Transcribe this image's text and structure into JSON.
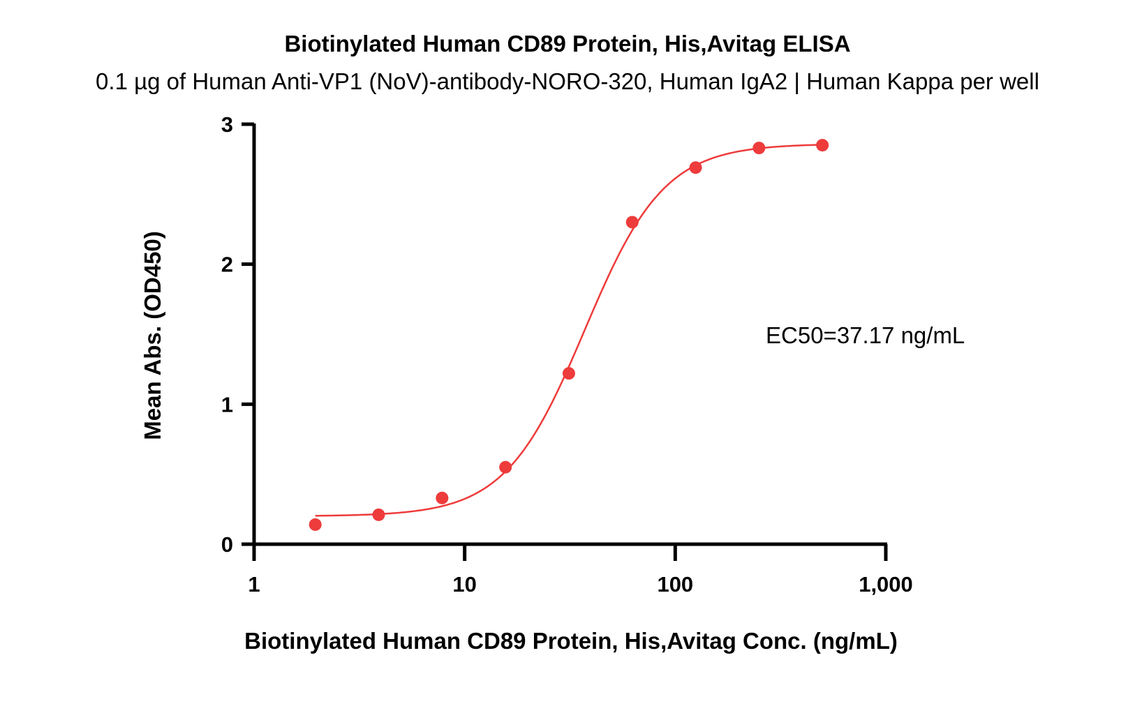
{
  "chart_data": {
    "type": "scatter",
    "title": "Biotinylated Human CD89 Protein, His,Avitag ELISA",
    "subtitle": "0.1 µg of Human Anti-VP1 (NoV)-antibody-NORO-320, Human IgA2 | Human Kappa per well",
    "xlabel": "Biotinylated Human CD89 Protein, His,Avitag Conc. (ng/mL)",
    "ylabel": "Mean Abs. (OD450)",
    "x_scale": "log",
    "xlim": [
      1,
      1000
    ],
    "ylim": [
      0,
      3
    ],
    "x_ticks": [
      1,
      10,
      100,
      1000
    ],
    "x_tick_labels": [
      "1",
      "10",
      "100",
      "1,000"
    ],
    "y_ticks": [
      0,
      1,
      2,
      3
    ],
    "y_tick_labels": [
      "0",
      "1",
      "2",
      "3"
    ],
    "grid": false,
    "series": [
      {
        "color": "#ee3b3b",
        "x": [
          1.953,
          3.906,
          7.813,
          15.63,
          31.25,
          62.5,
          125,
          250,
          500
        ],
        "y": [
          0.14,
          0.21,
          0.33,
          0.55,
          1.22,
          2.3,
          2.69,
          2.83,
          2.85
        ],
        "fit": {
          "model": "4PL",
          "bottom": 0.2,
          "top": 2.86,
          "ec50": 37.17,
          "hill": 2.3
        }
      }
    ],
    "annotations": [
      {
        "text": "EC50=37.17 ng/mL"
      }
    ]
  }
}
